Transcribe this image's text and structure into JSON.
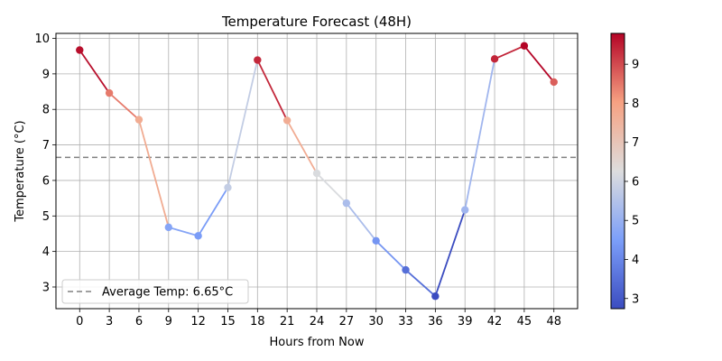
{
  "chart_data": {
    "type": "line",
    "title": "Temperature Forecast (48H)",
    "xlabel": "Hours from Now",
    "ylabel": "Temperature (°C)",
    "x": [
      0,
      3,
      6,
      9,
      12,
      15,
      18,
      21,
      24,
      27,
      30,
      33,
      36,
      39,
      42,
      45,
      48
    ],
    "values": [
      9.67,
      8.46,
      7.71,
      4.68,
      4.44,
      5.8,
      9.39,
      7.69,
      6.2,
      5.36,
      4.3,
      3.48,
      2.74,
      5.17,
      9.42,
      9.79,
      8.77
    ],
    "xticks": [
      0,
      3,
      6,
      9,
      12,
      15,
      18,
      21,
      24,
      27,
      30,
      33,
      36,
      39,
      42,
      45,
      48
    ],
    "yticks": [
      3,
      4,
      5,
      6,
      7,
      8,
      9,
      10
    ],
    "xlim": [
      -2.4,
      50.4
    ],
    "ylim": [
      2.39,
      10.14
    ],
    "grid": true,
    "average": {
      "value": 6.65,
      "label": "Average Temp: 6.65°C",
      "color": "#808080"
    },
    "legend_position": "lower-left",
    "colormap": "coolwarm",
    "colorbar": {
      "min": 2.74,
      "max": 9.79,
      "ticks": [
        3,
        4,
        5,
        6,
        7,
        8,
        9
      ]
    }
  }
}
